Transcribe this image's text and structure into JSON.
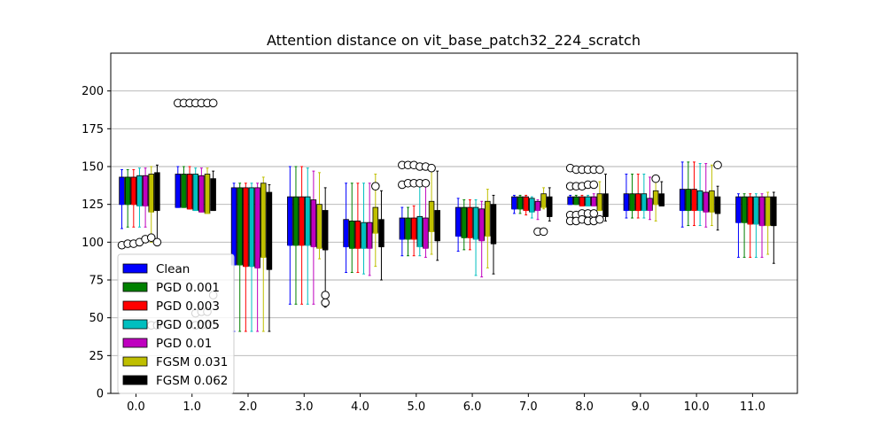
{
  "chart_data": {
    "type": "boxplot",
    "title": "Attention distance on vit_base_patch32_224_scratch",
    "xlabel": "",
    "ylabel": "",
    "ylim": [
      0,
      225
    ],
    "xlim": [
      -0.45,
      11.8
    ],
    "yticks": [
      0,
      25,
      50,
      75,
      100,
      125,
      150,
      175,
      200
    ],
    "xticks": [
      0.0,
      1.0,
      2.0,
      3.0,
      4.0,
      5.0,
      6.0,
      7.0,
      8.0,
      9.0,
      10.0,
      11.0
    ],
    "xtick_labels": [
      "0.0",
      "1.0",
      "2.0",
      "3.0",
      "4.0",
      "5.0",
      "6.0",
      "7.0",
      "8.0",
      "9.0",
      "10.0",
      "11.0"
    ],
    "grid": "horizontal",
    "legend_position": "lower-left",
    "series": [
      {
        "name": "Clean",
        "color": "#0000ff",
        "boxes": [
          {
            "whislo": 109,
            "q1": 125,
            "med": 125,
            "q3": 143,
            "whishi": 148,
            "fliers": [
              98
            ]
          },
          {
            "whislo": 123,
            "q1": 123,
            "med": 123,
            "q3": 145,
            "whishi": 150,
            "fliers": [
              192
            ]
          },
          {
            "whislo": 41,
            "q1": 85,
            "med": 85,
            "q3": 136,
            "whishi": 139,
            "fliers": []
          },
          {
            "whislo": 59,
            "q1": 98,
            "med": 98,
            "q3": 130,
            "whishi": 150,
            "fliers": []
          },
          {
            "whislo": 80,
            "q1": 97,
            "med": 97,
            "q3": 115,
            "whishi": 139,
            "fliers": []
          },
          {
            "whislo": 91,
            "q1": 102,
            "med": 102,
            "q3": 116,
            "whishi": 123,
            "fliers": [
              151,
              138
            ]
          },
          {
            "whislo": 94,
            "q1": 104,
            "med": 104,
            "q3": 123,
            "whishi": 129,
            "fliers": []
          },
          {
            "whislo": 119,
            "q1": 122,
            "med": 122,
            "q3": 130,
            "whishi": 131,
            "fliers": []
          },
          {
            "whislo": 125,
            "q1": 125,
            "med": 125,
            "q3": 130,
            "whishi": 131,
            "fliers": [
              149,
              137,
              118,
              114
            ]
          },
          {
            "whislo": 116,
            "q1": 121,
            "med": 121,
            "q3": 132,
            "whishi": 145,
            "fliers": []
          },
          {
            "whislo": 110,
            "q1": 121,
            "med": 121,
            "q3": 135,
            "whishi": 153,
            "fliers": []
          },
          {
            "whislo": 90,
            "q1": 113,
            "med": 113,
            "q3": 130,
            "whishi": 132,
            "fliers": []
          }
        ]
      },
      {
        "name": "PGD 0.001",
        "color": "#008000",
        "boxes": [
          {
            "whislo": 110,
            "q1": 125,
            "med": 125,
            "q3": 143,
            "whishi": 148,
            "fliers": [
              99
            ]
          },
          {
            "whislo": 123,
            "q1": 123,
            "med": 123,
            "q3": 145,
            "whishi": 150,
            "fliers": [
              192
            ]
          },
          {
            "whislo": 41,
            "q1": 85,
            "med": 85,
            "q3": 136,
            "whishi": 139,
            "fliers": []
          },
          {
            "whislo": 59,
            "q1": 98,
            "med": 98,
            "q3": 130,
            "whishi": 150,
            "fliers": []
          },
          {
            "whislo": 80,
            "q1": 96,
            "med": 96,
            "q3": 114,
            "whishi": 139,
            "fliers": []
          },
          {
            "whislo": 91,
            "q1": 102,
            "med": 102,
            "q3": 116,
            "whishi": 123,
            "fliers": [
              151,
              139
            ]
          },
          {
            "whislo": 95,
            "q1": 103,
            "med": 103,
            "q3": 123,
            "whishi": 128,
            "fliers": []
          },
          {
            "whislo": 119,
            "q1": 122,
            "med": 122,
            "q3": 130,
            "whishi": 131,
            "fliers": []
          },
          {
            "whislo": 125,
            "q1": 125,
            "med": 125,
            "q3": 130,
            "whishi": 131,
            "fliers": [
              148,
              137,
              118,
              114
            ]
          },
          {
            "whislo": 116,
            "q1": 121,
            "med": 121,
            "q3": 132,
            "whishi": 145,
            "fliers": []
          },
          {
            "whislo": 111,
            "q1": 121,
            "med": 121,
            "q3": 135,
            "whishi": 153,
            "fliers": []
          },
          {
            "whislo": 90,
            "q1": 113,
            "med": 113,
            "q3": 130,
            "whishi": 132,
            "fliers": []
          }
        ]
      },
      {
        "name": "PGD 0.003",
        "color": "#ff0000",
        "boxes": [
          {
            "whislo": 110,
            "q1": 125,
            "med": 125,
            "q3": 143,
            "whishi": 148,
            "fliers": [
              99
            ]
          },
          {
            "whislo": 122,
            "q1": 122,
            "med": 122,
            "q3": 145,
            "whishi": 150,
            "fliers": [
              192
            ]
          },
          {
            "whislo": 41,
            "q1": 84,
            "med": 84,
            "q3": 136,
            "whishi": 139,
            "fliers": []
          },
          {
            "whislo": 59,
            "q1": 98,
            "med": 98,
            "q3": 130,
            "whishi": 150,
            "fliers": []
          },
          {
            "whislo": 80,
            "q1": 96,
            "med": 96,
            "q3": 114,
            "whishi": 139,
            "fliers": []
          },
          {
            "whislo": 91,
            "q1": 102,
            "med": 102,
            "q3": 116,
            "whishi": 124,
            "fliers": [
              151,
              139
            ]
          },
          {
            "whislo": 95,
            "q1": 103,
            "med": 103,
            "q3": 123,
            "whishi": 128,
            "fliers": []
          },
          {
            "whislo": 118,
            "q1": 121,
            "med": 121,
            "q3": 130,
            "whishi": 131,
            "fliers": []
          },
          {
            "whislo": 124,
            "q1": 124,
            "med": 124,
            "q3": 130,
            "whishi": 131,
            "fliers": [
              148,
              137,
              119,
              115
            ]
          },
          {
            "whislo": 116,
            "q1": 121,
            "med": 121,
            "q3": 132,
            "whishi": 145,
            "fliers": []
          },
          {
            "whislo": 111,
            "q1": 121,
            "med": 121,
            "q3": 135,
            "whishi": 153,
            "fliers": []
          },
          {
            "whislo": 90,
            "q1": 112,
            "med": 112,
            "q3": 130,
            "whishi": 132,
            "fliers": []
          }
        ]
      },
      {
        "name": "PGD 0.005",
        "color": "#00bfbf",
        "boxes": [
          {
            "whislo": 110,
            "q1": 124,
            "med": 124,
            "q3": 144,
            "whishi": 149,
            "fliers": [
              100
            ]
          },
          {
            "whislo": 121,
            "q1": 121,
            "med": 121,
            "q3": 145,
            "whishi": 149,
            "fliers": [
              192,
              53,
              45
            ]
          },
          {
            "whislo": 41,
            "q1": 84,
            "med": 84,
            "q3": 136,
            "whishi": 139,
            "fliers": []
          },
          {
            "whislo": 59,
            "q1": 98,
            "med": 98,
            "q3": 130,
            "whishi": 149,
            "fliers": []
          },
          {
            "whislo": 79,
            "q1": 96,
            "med": 96,
            "q3": 113,
            "whishi": 139,
            "fliers": []
          },
          {
            "whislo": 91,
            "q1": 97,
            "med": 97,
            "q3": 117,
            "whishi": 138,
            "fliers": [
              150,
              139
            ]
          },
          {
            "whislo": 78,
            "q1": 102,
            "med": 102,
            "q3": 123,
            "whishi": 128,
            "fliers": []
          },
          {
            "whislo": 116,
            "q1": 120,
            "med": 120,
            "q3": 129,
            "whishi": 130,
            "fliers": []
          },
          {
            "whislo": 124,
            "q1": 124,
            "med": 124,
            "q3": 130,
            "whishi": 131,
            "fliers": [
              148,
              138,
              119,
              114
            ]
          },
          {
            "whislo": 116,
            "q1": 121,
            "med": 121,
            "q3": 132,
            "whishi": 145,
            "fliers": []
          },
          {
            "whislo": 111,
            "q1": 121,
            "med": 121,
            "q3": 134,
            "whishi": 152,
            "fliers": []
          },
          {
            "whislo": 90,
            "q1": 112,
            "med": 112,
            "q3": 130,
            "whishi": 132,
            "fliers": []
          }
        ]
      },
      {
        "name": "PGD 0.01",
        "color": "#bf00bf",
        "boxes": [
          {
            "whislo": 110,
            "q1": 124,
            "med": 124,
            "q3": 144,
            "whishi": 149,
            "fliers": [
              102
            ]
          },
          {
            "whislo": 120,
            "q1": 120,
            "med": 120,
            "q3": 144,
            "whishi": 149,
            "fliers": [
              192,
              54,
              45
            ]
          },
          {
            "whislo": 41,
            "q1": 83,
            "med": 83,
            "q3": 136,
            "whishi": 139,
            "fliers": []
          },
          {
            "whislo": 59,
            "q1": 97,
            "med": 97,
            "q3": 128,
            "whishi": 147,
            "fliers": []
          },
          {
            "whislo": 78,
            "q1": 96,
            "med": 96,
            "q3": 113,
            "whishi": 139,
            "fliers": []
          },
          {
            "whislo": 90,
            "q1": 96,
            "med": 96,
            "q3": 116,
            "whishi": 137,
            "fliers": [
              150,
              139
            ]
          },
          {
            "whislo": 77,
            "q1": 101,
            "med": 101,
            "q3": 122,
            "whishi": 127,
            "fliers": []
          },
          {
            "whislo": 115,
            "q1": 121,
            "med": 121,
            "q3": 127,
            "whishi": 128,
            "fliers": [
              107
            ]
          },
          {
            "whislo": 124,
            "q1": 124,
            "med": 124,
            "q3": 130,
            "whishi": 132,
            "fliers": [
              148,
              138,
              119,
              114
            ]
          },
          {
            "whislo": 115,
            "q1": 121,
            "med": 121,
            "q3": 129,
            "whishi": 143,
            "fliers": []
          },
          {
            "whislo": 110,
            "q1": 120,
            "med": 120,
            "q3": 133,
            "whishi": 152,
            "fliers": []
          },
          {
            "whislo": 90,
            "q1": 111,
            "med": 111,
            "q3": 130,
            "whishi": 132,
            "fliers": []
          }
        ]
      },
      {
        "name": "FGSM 0.031",
        "color": "#bfbf00",
        "boxes": [
          {
            "whislo": 100,
            "q1": 120,
            "med": 120,
            "q3": 145,
            "whishi": 150,
            "fliers": [
              103,
              45
            ]
          },
          {
            "whislo": 119,
            "q1": 119,
            "med": 119,
            "q3": 145,
            "whishi": 149,
            "fliers": [
              192,
              54,
              45
            ]
          },
          {
            "whislo": 41,
            "q1": 90,
            "med": 90,
            "q3": 139,
            "whishi": 143,
            "fliers": []
          },
          {
            "whislo": 89,
            "q1": 96,
            "med": 96,
            "q3": 125,
            "whishi": 146,
            "fliers": []
          },
          {
            "whislo": 84,
            "q1": 106,
            "med": 106,
            "q3": 123,
            "whishi": 145,
            "fliers": [
              137
            ]
          },
          {
            "whislo": 92,
            "q1": 107,
            "med": 107,
            "q3": 127,
            "whishi": 149,
            "fliers": [
              149
            ]
          },
          {
            "whislo": 83,
            "q1": 104,
            "med": 104,
            "q3": 127,
            "whishi": 135,
            "fliers": []
          },
          {
            "whislo": 122,
            "q1": 123,
            "med": 123,
            "q3": 132,
            "whishi": 136,
            "fliers": [
              107
            ]
          },
          {
            "whislo": 121,
            "q1": 121,
            "med": 121,
            "q3": 132,
            "whishi": 140,
            "fliers": [
              148,
              115
            ]
          },
          {
            "whislo": 114,
            "q1": 125,
            "med": 125,
            "q3": 134,
            "whishi": 143,
            "fliers": [
              142
            ]
          },
          {
            "whislo": 111,
            "q1": 120,
            "med": 120,
            "q3": 134,
            "whishi": 151,
            "fliers": []
          },
          {
            "whislo": 92,
            "q1": 111,
            "med": 111,
            "q3": 130,
            "whishi": 133,
            "fliers": []
          }
        ]
      },
      {
        "name": "FGSM 0.062",
        "color": "#000000",
        "boxes": [
          {
            "whislo": 99,
            "q1": 121,
            "med": 121,
            "q3": 146,
            "whishi": 151,
            "fliers": [
              100,
              45
            ]
          },
          {
            "whislo": 121,
            "q1": 121,
            "med": 121,
            "q3": 142,
            "whishi": 147,
            "fliers": [
              192,
              65,
              45
            ]
          },
          {
            "whislo": 41,
            "q1": 82,
            "med": 82,
            "q3": 133,
            "whishi": 138,
            "fliers": []
          },
          {
            "whislo": 57,
            "q1": 95,
            "med": 95,
            "q3": 121,
            "whishi": 136,
            "fliers": [
              65,
              60
            ]
          },
          {
            "whislo": 75,
            "q1": 97,
            "med": 97,
            "q3": 115,
            "whishi": 134,
            "fliers": []
          },
          {
            "whislo": 88,
            "q1": 101,
            "med": 101,
            "q3": 121,
            "whishi": 147,
            "fliers": []
          },
          {
            "whislo": 79,
            "q1": 99,
            "med": 99,
            "q3": 125,
            "whishi": 131,
            "fliers": []
          },
          {
            "whislo": 114,
            "q1": 117,
            "med": 117,
            "q3": 130,
            "whishi": 136,
            "fliers": []
          },
          {
            "whislo": 114,
            "q1": 117,
            "med": 117,
            "q3": 132,
            "whishi": 145,
            "fliers": []
          },
          {
            "whislo": 124,
            "q1": 124,
            "med": 124,
            "q3": 132,
            "whishi": 140,
            "fliers": []
          },
          {
            "whislo": 108,
            "q1": 119,
            "med": 119,
            "q3": 130,
            "whishi": 137,
            "fliers": [
              151
            ]
          },
          {
            "whislo": 86,
            "q1": 111,
            "med": 111,
            "q3": 130,
            "whishi": 133,
            "fliers": []
          }
        ]
      }
    ]
  }
}
